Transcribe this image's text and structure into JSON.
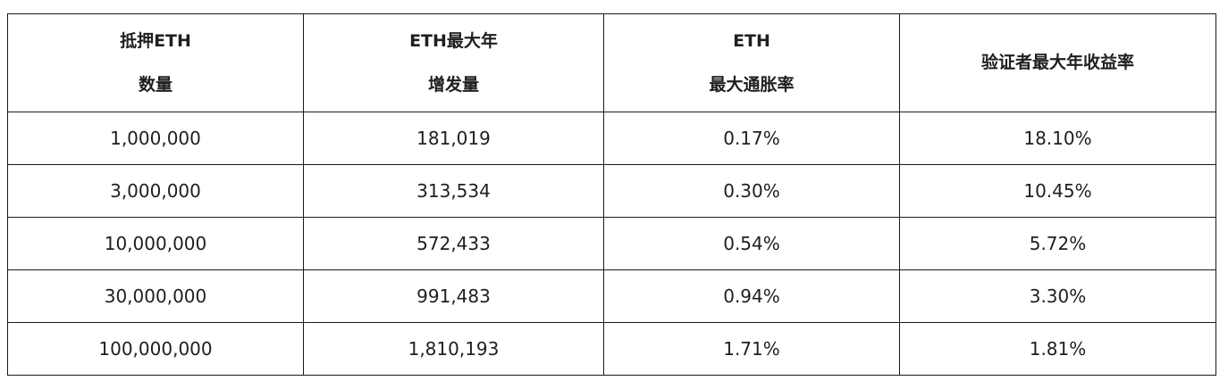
{
  "table": {
    "headers": [
      {
        "line1": "抵押ETH",
        "line2": "数量"
      },
      {
        "line1": "ETH最大年",
        "line2": "增发量"
      },
      {
        "line1": "ETH",
        "line2": "最大通胀率"
      },
      {
        "line1": "验证者最大年收益率"
      }
    ],
    "rows": [
      [
        "1,000,000",
        "181,019",
        "0.17%",
        "18.10%"
      ],
      [
        "3,000,000",
        "313,534",
        "0.30%",
        "10.45%"
      ],
      [
        "10,000,000",
        "572,433",
        "0.54%",
        "5.72%"
      ],
      [
        "30,000,000",
        "991,483",
        "0.94%",
        "3.30%"
      ],
      [
        "100,000,000",
        "1,810,193",
        "1.71%",
        "1.81%"
      ]
    ]
  }
}
